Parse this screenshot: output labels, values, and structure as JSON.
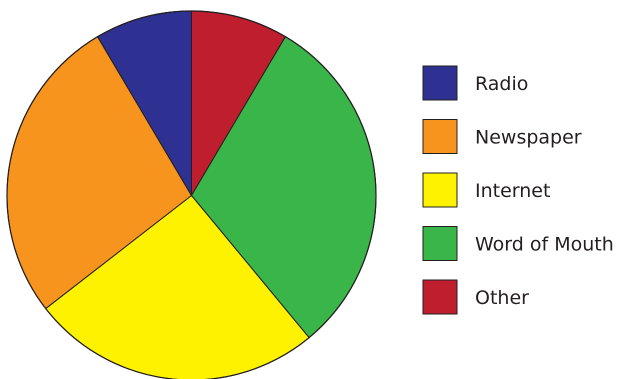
{
  "chart_data": {
    "type": "pie",
    "title": "",
    "slices": [
      {
        "label": "Radio",
        "value": 8.5,
        "color": "#2e3192"
      },
      {
        "label": "Newspaper",
        "value": 27,
        "color": "#f7941d"
      },
      {
        "label": "Internet",
        "value": 25.5,
        "color": "#fff200"
      },
      {
        "label": "Word of Mouth",
        "value": 30.5,
        "color": "#39b54a"
      },
      {
        "label": "Other",
        "value": 8.5,
        "color": "#be1e2d"
      }
    ],
    "pie_draw_order": [
      "Other",
      "Word of Mouth",
      "Internet",
      "Newspaper",
      "Radio"
    ],
    "start_angle_deg": 0,
    "direction": "clockwise",
    "legend_position": "right",
    "outline_color": "#231f20"
  }
}
